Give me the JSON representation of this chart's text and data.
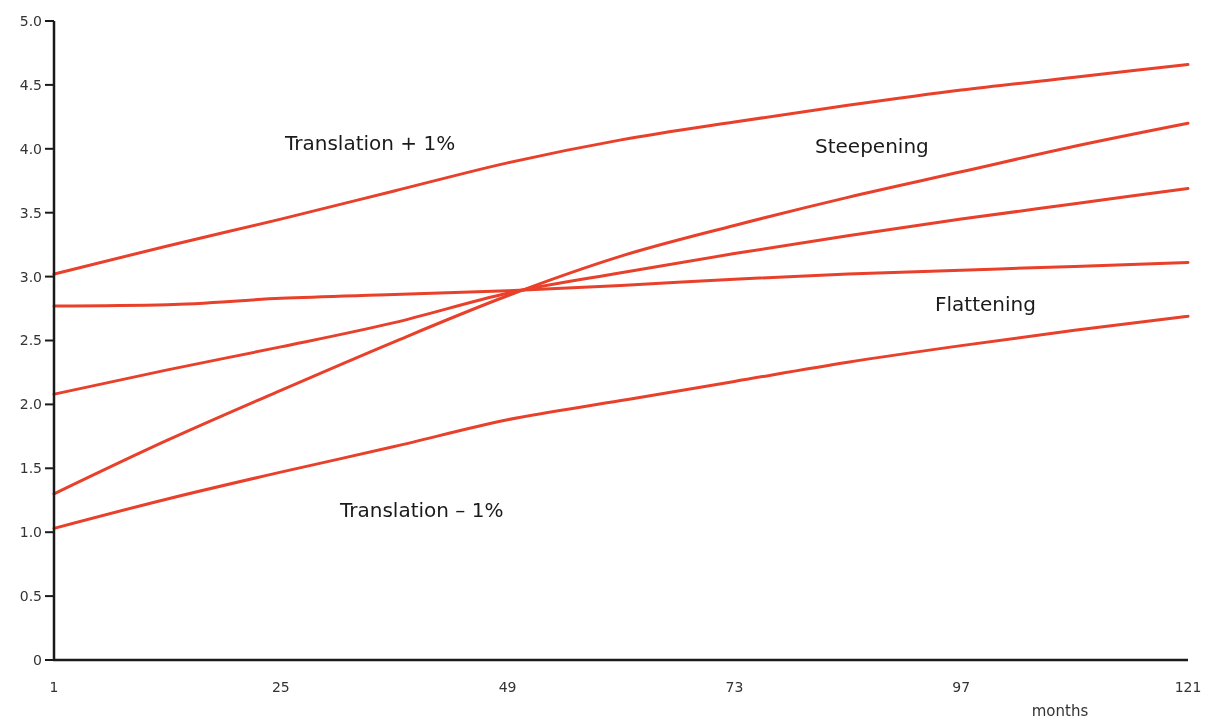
{
  "chart_data": {
    "type": "line",
    "xlabel": "months",
    "x": [
      1,
      13,
      25,
      37,
      49,
      61,
      73,
      85,
      97,
      109,
      121
    ],
    "series": [
      {
        "color": "#e8402a",
        "values": [
          3.02,
          3.24,
          3.45,
          3.67,
          3.89,
          4.07,
          4.21,
          4.34,
          4.46,
          4.56,
          4.66
        ]
      },
      {
        "color": "#e8402a",
        "values": [
          1.3,
          1.72,
          2.11,
          2.49,
          2.85,
          3.16,
          3.4,
          3.62,
          3.82,
          4.02,
          4.2
        ]
      },
      {
        "color": "#e8402a",
        "values": [
          2.08,
          2.27,
          2.45,
          2.64,
          2.87,
          3.03,
          3.18,
          3.32,
          3.45,
          3.57,
          3.69
        ]
      },
      {
        "color": "#e8402a",
        "values": [
          2.77,
          2.78,
          2.83,
          2.86,
          2.89,
          2.93,
          2.98,
          3.02,
          3.05,
          3.08,
          3.11
        ]
      },
      {
        "color": "#e8402a",
        "values": [
          1.03,
          1.26,
          1.47,
          1.67,
          1.88,
          2.03,
          2.18,
          2.33,
          2.46,
          2.58,
          2.69
        ]
      }
    ],
    "annotations": [
      "Translation + 1%",
      "Steepening",
      "Flattening",
      "Translation – 1%"
    ],
    "xlim": [
      1,
      121
    ],
    "xticks": [
      1,
      25,
      49,
      73,
      97,
      121
    ],
    "ylim": [
      0,
      5
    ],
    "yticks": [
      0,
      {
        "value": 0.5,
        "label": "0.5"
      },
      {
        "value": 1,
        "label": "1.0"
      },
      {
        "value": 1.5,
        "label": "1.5"
      },
      {
        "value": 2,
        "label": "2.0"
      },
      {
        "value": 2.5,
        "label": "2.5"
      },
      {
        "value": 3,
        "label": "3.0"
      },
      {
        "value": 3.5,
        "label": "3.5"
      },
      {
        "value": 4,
        "label": "4.0"
      },
      {
        "value": 4.5,
        "label": "4.5"
      },
      {
        "value": 5,
        "label": "5.0"
      }
    ],
    "grid": false,
    "marker": "none",
    "line_style": "solid"
  }
}
